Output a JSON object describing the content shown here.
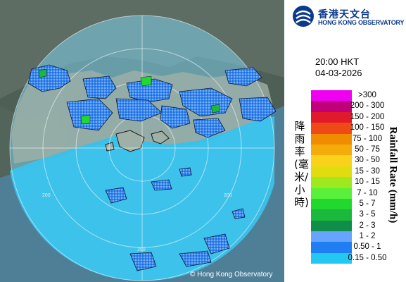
{
  "organization": {
    "name_zh": "香港天文台",
    "name_en": "HONG KONG OBSERVATORY"
  },
  "timestamp": {
    "time": "20:00 HKT",
    "date": "04-03-2026"
  },
  "legend": {
    "title_zh": "降雨率(毫米/小時)",
    "title_en": "Rainfall Rate (mm/h)",
    "bins": [
      {
        "label": ">300",
        "color": "#f000f0"
      },
      {
        "label": "200 - 300",
        "color": "#c0007a"
      },
      {
        "label": "150 - 200",
        "color": "#e01a2a"
      },
      {
        "label": "100 - 150",
        "color": "#ee4a18"
      },
      {
        "label": "75 - 100",
        "color": "#f08c00"
      },
      {
        "label": "50 - 75",
        "color": "#f4ac0a"
      },
      {
        "label": "30 - 50",
        "color": "#fad21a"
      },
      {
        "label": "15 - 30",
        "color": "#e0dc10"
      },
      {
        "label": "10 - 15",
        "color": "#a0e81e"
      },
      {
        "label": "7 - 10",
        "color": "#58f03a"
      },
      {
        "label": "5 - 7",
        "color": "#22d82e"
      },
      {
        "label": "3 - 5",
        "color": "#1ab83c"
      },
      {
        "label": "2 - 3",
        "color": "#108e48"
      },
      {
        "label": "1 - 2",
        "color": "#66a4ff"
      },
      {
        "label": "0.50 - 1",
        "color": "#1e7ef2"
      },
      {
        "label": "0.15 - 0.50",
        "color": "#23c8f2"
      }
    ]
  },
  "map": {
    "range_rings": [
      "200",
      "200",
      "200"
    ],
    "copyright": "© Hong Kong Observatory"
  }
}
